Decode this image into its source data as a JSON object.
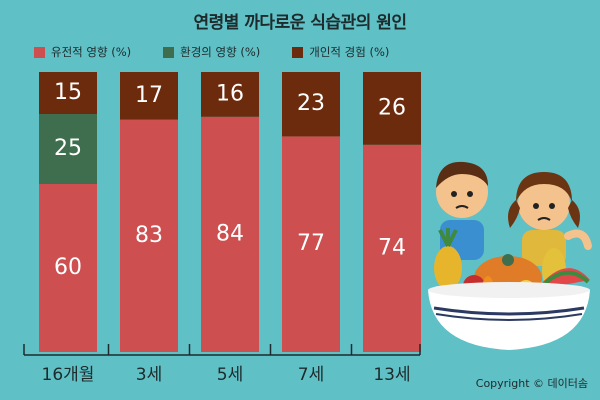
{
  "title": "연령별 까다로운 식습관의 원인",
  "copyright": "Copyright © 데이터솜",
  "colors": {
    "background": "#5fc0c6",
    "genetic": "#cd4f4f",
    "environment": "#3e6e4d",
    "personal": "#6b2b0c"
  },
  "chart_data": {
    "type": "bar",
    "stacked": true,
    "categories": [
      "16개월",
      "3세",
      "5세",
      "7세",
      "13세"
    ],
    "series": [
      {
        "name": "유전적 영향 (%)",
        "color": "#cd4f4f",
        "values": [
          60,
          83,
          84,
          77,
          74
        ]
      },
      {
        "name": "환경의 영향 (%)",
        "color": "#3e6e4d",
        "values": [
          25,
          0,
          0,
          0,
          0
        ]
      },
      {
        "name": "개인적 경험 (%)",
        "color": "#6b2b0c",
        "values": [
          15,
          17,
          16,
          23,
          26
        ]
      }
    ],
    "ylim": [
      0,
      100
    ],
    "legend_position": "top-left",
    "grid": false
  }
}
